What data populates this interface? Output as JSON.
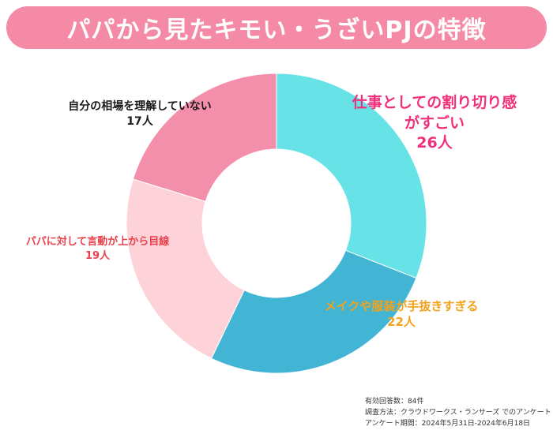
{
  "title": "パパから見たキモい・うざいPJの特徴",
  "chart_data": {
    "type": "pie",
    "donut": true,
    "start_angle_deg": 0,
    "direction": "clockwise",
    "slices": [
      {
        "label_lines": [
          "仕事としての割り切り感",
          "がすごい"
        ],
        "value_label": "26人",
        "value": 26,
        "color": "#67e3e8"
      },
      {
        "label_lines": [
          "メイクや服装が手抜きすぎる"
        ],
        "value_label": "22人",
        "value": 22,
        "color": "#42b5d5"
      },
      {
        "label_lines": [
          "パパに対して言動が上から目線"
        ],
        "value_label": "19人",
        "value": 19,
        "color": "#fdd3d9"
      },
      {
        "label_lines": [
          "自分の相場を理解していない"
        ],
        "value_label": "17人",
        "value": 17,
        "color": "#f48fab"
      }
    ]
  },
  "notes": {
    "line1": "有効回答数：84件",
    "line2": "調査方法：クラウドワークス・ランサーズ でのアンケート",
    "line3": "アンケート期間：2024年5月31日-2024年6月18日"
  }
}
